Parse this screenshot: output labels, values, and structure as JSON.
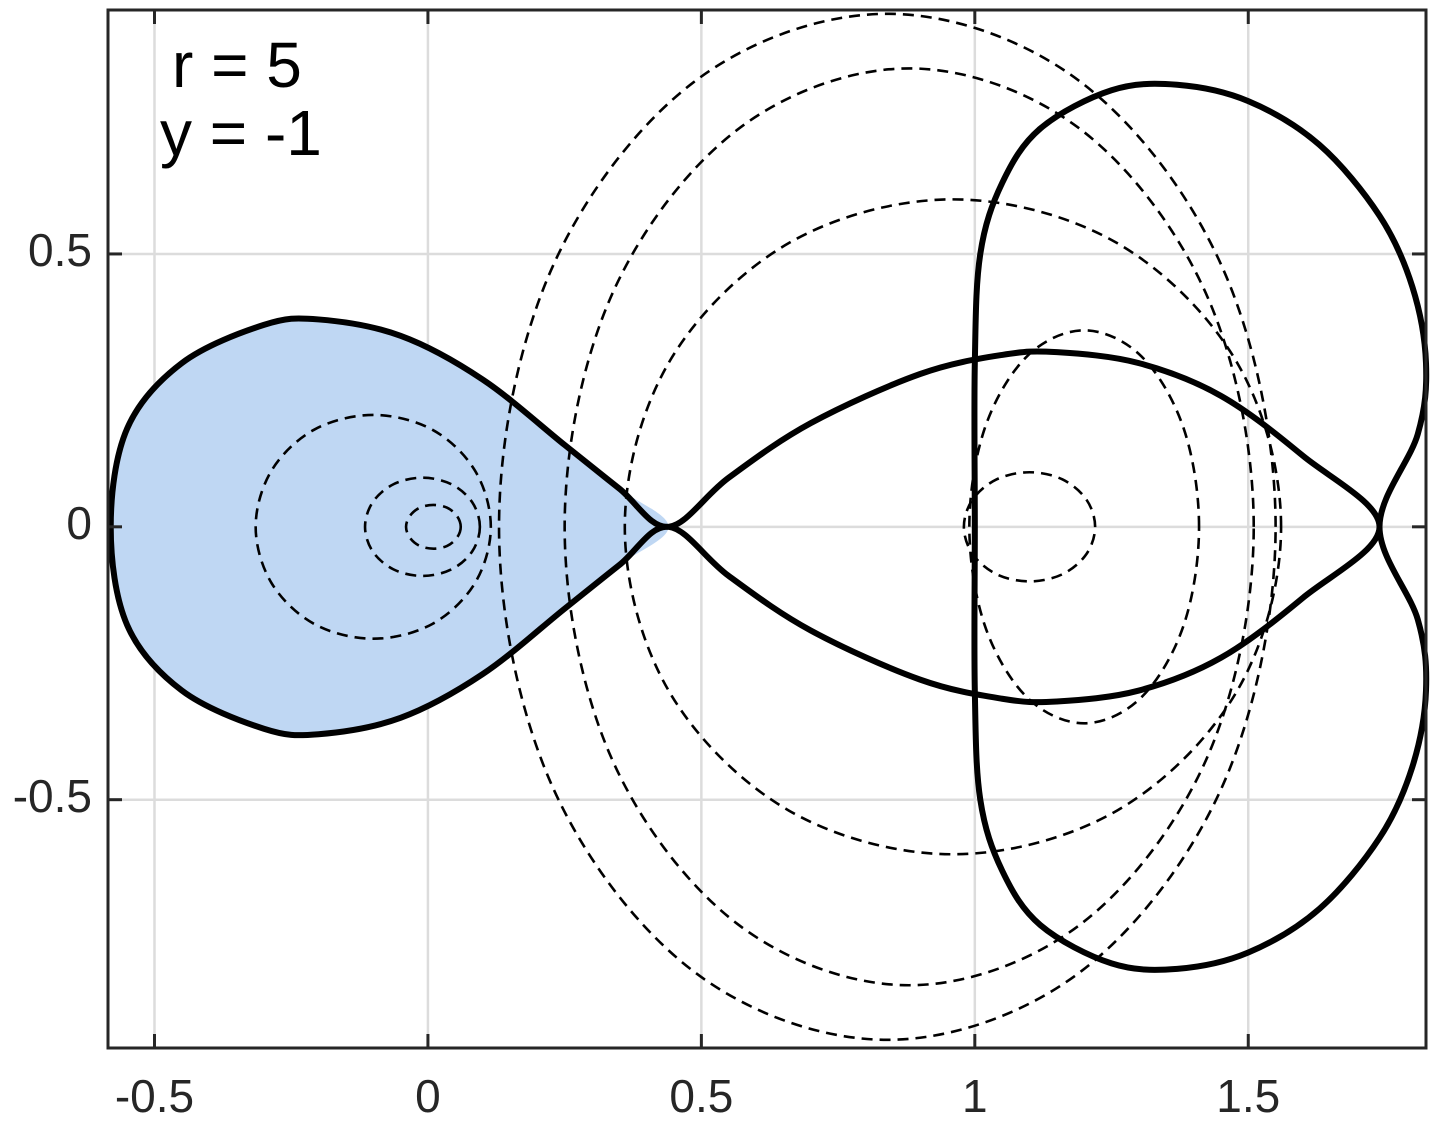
{
  "chart_data": {
    "type": "line",
    "annotations": [
      "r = 5",
      "y = -1"
    ],
    "xlim": [
      -0.585,
      1.825
    ],
    "ylim": [
      -0.955,
      0.947
    ],
    "xticks": [
      -0.5,
      0,
      0.5,
      1,
      1.5
    ],
    "yticks": [
      -0.5,
      0,
      0.5
    ],
    "grid": true,
    "series": [
      {
        "style": "fill",
        "color": "#bfd7f3",
        "closed": true,
        "x": [
          -0.58,
          -0.55,
          -0.45,
          -0.3,
          -0.2,
          -0.05,
          0.1,
          0.25,
          0.35,
          0.44,
          0.35,
          0.25,
          0.1,
          -0.05,
          -0.2,
          -0.3,
          -0.45,
          -0.55
        ],
        "y": [
          0,
          0.18,
          0.3,
          0.37,
          0.38,
          0.35,
          0.27,
          0.15,
          0.07,
          0,
          -0.07,
          -0.15,
          -0.27,
          -0.35,
          -0.38,
          -0.37,
          -0.3,
          -0.18
        ]
      },
      {
        "style": "dashed",
        "color": "#000000",
        "closed": true,
        "x": [
          0.06,
          0.053,
          0.035,
          0.01,
          -0.015,
          -0.033,
          -0.04,
          -0.033,
          -0.015,
          0.01,
          0.035,
          0.053
        ],
        "y": [
          0,
          0.02,
          0.035,
          0.04,
          0.035,
          0.02,
          0,
          -0.02,
          -0.035,
          -0.04,
          -0.035,
          -0.02
        ]
      },
      {
        "style": "dashed",
        "color": "#000000",
        "closed": true,
        "x": [
          0.095,
          0.081,
          0.043,
          -0.01,
          -0.063,
          -0.101,
          -0.115,
          -0.101,
          -0.063,
          -0.01,
          0.043,
          0.081
        ],
        "y": [
          0,
          0.045,
          0.078,
          0.09,
          0.078,
          0.045,
          0,
          -0.045,
          -0.078,
          -0.09,
          -0.078,
          -0.045
        ]
      },
      {
        "style": "dashed",
        "color": "#000000",
        "closed": true,
        "x": [
          0.115,
          0.086,
          0.008,
          -0.1,
          -0.208,
          -0.286,
          -0.315,
          -0.286,
          -0.208,
          -0.1,
          0.008,
          0.086
        ],
        "y": [
          0,
          0.103,
          0.178,
          0.205,
          0.178,
          0.103,
          0,
          -0.103,
          -0.178,
          -0.205,
          -0.178,
          -0.103
        ]
      },
      {
        "style": "dashed",
        "color": "#000000",
        "closed": true,
        "x": [
          1.55,
          1.455,
          1.195,
          0.84,
          0.485,
          0.225,
          0.13,
          0.225,
          0.485,
          0.84,
          1.195,
          1.455
        ],
        "y": [
          0,
          0.47,
          0.814,
          0.94,
          0.814,
          0.47,
          0,
          -0.47,
          -0.814,
          -0.94,
          -0.814,
          -0.47
        ]
      },
      {
        "style": "dashed",
        "color": "#000000",
        "closed": true,
        "x": [
          1.51,
          1.426,
          1.195,
          0.88,
          0.565,
          0.334,
          0.25,
          0.334,
          0.565,
          0.88,
          1.195,
          1.426
        ],
        "y": [
          0,
          0.42,
          0.727,
          0.84,
          0.727,
          0.42,
          0,
          -0.42,
          -0.727,
          -0.84,
          -0.727,
          -0.42
        ]
      },
      {
        "style": "dashed",
        "color": "#000000",
        "closed": true,
        "x": [
          1.56,
          1.48,
          1.26,
          0.96,
          0.66,
          0.44,
          0.36,
          0.44,
          0.66,
          0.96,
          1.26,
          1.48
        ],
        "y": [
          0,
          0.3,
          0.52,
          0.6,
          0.52,
          0.3,
          0,
          -0.3,
          -0.52,
          -0.6,
          -0.52,
          -0.3
        ]
      },
      {
        "style": "dashed",
        "color": "#000000",
        "closed": true,
        "x": [
          1.41,
          1.382,
          1.305,
          1.2,
          1.095,
          1.018,
          0.99,
          1.018,
          1.095,
          1.2,
          1.305,
          1.382
        ],
        "y": [
          0,
          0.18,
          0.312,
          0.36,
          0.312,
          0.18,
          0,
          -0.18,
          -0.312,
          -0.36,
          -0.312,
          -0.18
        ]
      },
      {
        "style": "dashed",
        "color": "#000000",
        "closed": true,
        "x": [
          1.22,
          1.204,
          1.16,
          1.1,
          1.04,
          0.996,
          0.98,
          0.996,
          1.04,
          1.1,
          1.16,
          1.204
        ],
        "y": [
          0,
          0.05,
          0.087,
          0.1,
          0.087,
          0.05,
          0,
          -0.05,
          -0.087,
          -0.1,
          -0.087,
          -0.05
        ]
      },
      {
        "style": "solid",
        "color": "#000000",
        "closed": true,
        "x": [
          -0.58,
          -0.55,
          -0.45,
          -0.3,
          -0.2,
          -0.05,
          0.1,
          0.25,
          0.35,
          0.44,
          0.55,
          0.7,
          0.9,
          1.05,
          1.15,
          1.3,
          1.45,
          1.6,
          1.74,
          1.6,
          1.45,
          1.3,
          1.15,
          1.05,
          0.9,
          0.7,
          0.55,
          0.44,
          0.35,
          0.25,
          0.1,
          -0.05,
          -0.2,
          -0.3,
          -0.45,
          -0.55
        ],
        "y": [
          0,
          0.18,
          0.3,
          0.37,
          0.38,
          0.35,
          0.27,
          0.15,
          0.07,
          0,
          0.09,
          0.19,
          0.28,
          0.315,
          0.32,
          0.3,
          0.24,
          0.13,
          0,
          -0.13,
          -0.24,
          -0.3,
          -0.32,
          -0.315,
          -0.28,
          -0.19,
          -0.09,
          0,
          -0.07,
          -0.15,
          -0.27,
          -0.35,
          -0.38,
          -0.37,
          -0.3,
          -0.18
        ]
      },
      {
        "style": "solid",
        "color": "#000000",
        "closed": true,
        "x": [
          1,
          1,
          1.01,
          1.05,
          1.12,
          1.25,
          1.37,
          1.5,
          1.63,
          1.74,
          1.8,
          1.825,
          1.81,
          1.74,
          1.81,
          1.825,
          1.8,
          1.74,
          1.63,
          1.5,
          1.37,
          1.25,
          1.12,
          1.05,
          1.01,
          1
        ],
        "y": [
          0,
          0.3,
          0.5,
          0.63,
          0.73,
          0.8,
          0.81,
          0.78,
          0.7,
          0.57,
          0.44,
          0.3,
          0.17,
          0,
          -0.17,
          -0.3,
          -0.44,
          -0.57,
          -0.7,
          -0.78,
          -0.81,
          -0.8,
          -0.73,
          -0.63,
          -0.5,
          -0.3
        ]
      }
    ]
  }
}
